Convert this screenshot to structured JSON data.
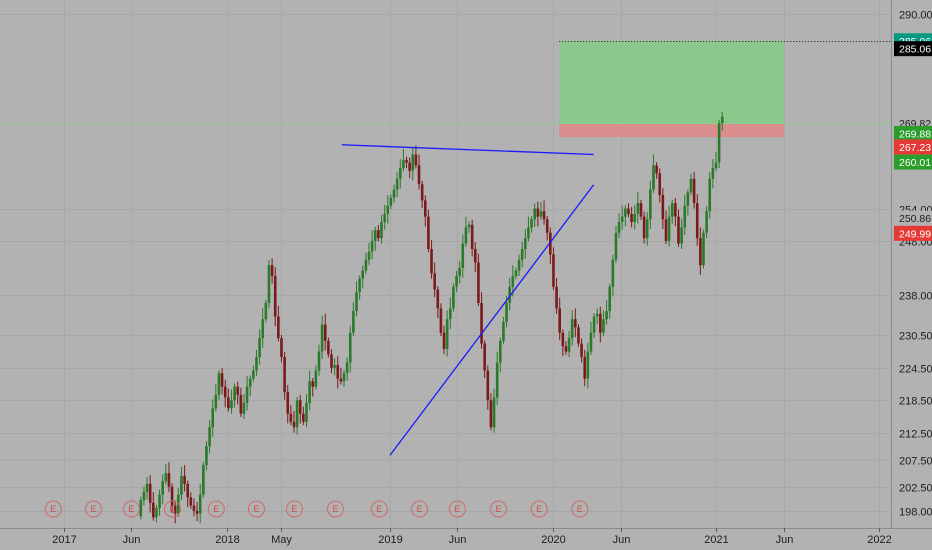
{
  "chart_data": {
    "type": "candlestick",
    "title": "",
    "ylim": [
      196.5,
      291.5
    ],
    "x_range": [
      "2016-07-01",
      "2022-05-01"
    ],
    "y_ticks": [
      {
        "label": "290.00",
        "value": 290.0
      },
      {
        "label": "254.00",
        "value": 254.0
      },
      {
        "label": "248.00",
        "value": 248.0
      },
      {
        "label": "238.00",
        "value": 238.0
      },
      {
        "label": "230.50",
        "value": 230.5
      },
      {
        "label": "224.50",
        "value": 224.5
      },
      {
        "label": "218.50",
        "value": 218.5
      },
      {
        "label": "212.50",
        "value": 212.5
      },
      {
        "label": "207.50",
        "value": 207.5
      },
      {
        "label": "202.50",
        "value": 202.5
      },
      {
        "label": "198.00",
        "value": 198.0
      }
    ],
    "x_ticks": [
      {
        "label": "2017",
        "date": "2017-01-01"
      },
      {
        "label": "Jun",
        "date": "2017-06-01"
      },
      {
        "label": "2018",
        "date": "2018-01-01"
      },
      {
        "label": "May",
        "date": "2018-05-01"
      },
      {
        "label": "2019",
        "date": "2019-01-01"
      },
      {
        "label": "Jun",
        "date": "2019-06-01"
      },
      {
        "label": "2020",
        "date": "2020-01-01"
      },
      {
        "label": "Jun",
        "date": "2020-06-01"
      },
      {
        "label": "2021",
        "date": "2021-01-01"
      },
      {
        "label": "Jun",
        "date": "2021-06-01"
      },
      {
        "label": "2022",
        "date": "2022-01-01"
      }
    ],
    "price_tags": [
      {
        "label": "285.06",
        "value": 285.06,
        "color": "#089981",
        "text_color": "#ffffff"
      },
      {
        "label": "285.06",
        "value": 283.6,
        "color": "#000000",
        "text_color": "#ffffff"
      },
      {
        "label": "269.82",
        "value": 269.82,
        "color": "#b2b2b2",
        "text_color": "#1e1e1e"
      },
      {
        "label": "269.88",
        "value": 267.9,
        "color": "#2a9d2a",
        "text_color": "#ffffff"
      },
      {
        "label": "267.23",
        "value": 265.4,
        "color": "#e53935",
        "text_color": "#ffffff"
      },
      {
        "label": "260.01",
        "value": 262.6,
        "color": "#2a9d2a",
        "text_color": "#ffffff"
      },
      {
        "label": "250.86",
        "value": 252.2,
        "color": "#b2b2b2",
        "text_color": "#1e1e1e"
      },
      {
        "label": "249.99",
        "value": 249.4,
        "color": "#e53935",
        "text_color": "#ffffff"
      }
    ],
    "earnings_marker_label": "E",
    "earnings_dates": [
      "2016-12-08",
      "2017-03-08",
      "2017-06-01",
      "2017-09-01",
      "2017-12-08",
      "2018-03-08",
      "2018-06-01",
      "2018-09-01",
      "2018-12-08",
      "2019-03-08",
      "2019-06-01",
      "2019-09-01",
      "2019-12-01",
      "2020-03-01"
    ],
    "trade_box": {
      "start": "2020-01-15",
      "end": "2021-06-01",
      "entry": 269.82,
      "target": 285.06,
      "stop": 267.23,
      "profit_color": "#7ecf7e",
      "loss_color": "#e08686"
    },
    "trendlines": [
      {
        "from": {
          "date": "2018-09-15",
          "value": 265.8
        },
        "to": {
          "date": "2020-04-01",
          "value": 264.0
        },
        "color": "#1a1aff"
      },
      {
        "from": {
          "date": "2019-01-01",
          "value": 208.3
        },
        "to": {
          "date": "2020-04-01",
          "value": 258.4
        },
        "color": "#1a1aff"
      }
    ],
    "horizontal_lines": [
      {
        "value": 269.82,
        "color": "#8fcf8f",
        "style": "solid"
      },
      {
        "value": 285.06,
        "color": "#1e1e1e",
        "style": "dotted"
      }
    ],
    "candles": {
      "interval": "weekly",
      "up_color": "#2a7a2a",
      "down_color": "#7a1a1a",
      "start": "2017-06-22",
      "open_first": 197.0,
      "closes": [
        200.0,
        201.5,
        203.0,
        199.5,
        196.8,
        198.5,
        201.0,
        203.5,
        205.0,
        202.5,
        199.0,
        197.5,
        201.0,
        204.5,
        203.0,
        200.5,
        199.0,
        198.0,
        197.5,
        201.0,
        206.5,
        210.0,
        213.5,
        217.0,
        219.5,
        223.5,
        221.0,
        219.0,
        217.0,
        218.5,
        221.0,
        219.5,
        216.0,
        218.0,
        221.0,
        222.5,
        224.0,
        226.5,
        230.0,
        233.5,
        236.5,
        243.5,
        241.5,
        234.0,
        230.0,
        226.5,
        220.0,
        216.0,
        214.5,
        213.5,
        218.5,
        216.0,
        214.5,
        218.0,
        222.0,
        221.0,
        224.0,
        227.5,
        232.5,
        229.5,
        227.0,
        224.5,
        225.0,
        222.5,
        222.0,
        223.5,
        225.5,
        231.0,
        235.0,
        238.5,
        241.0,
        242.5,
        244.5,
        246.0,
        248.0,
        250.0,
        248.5,
        251.5,
        253.0,
        254.5,
        256.0,
        257.5,
        259.5,
        261.5,
        263.0,
        262.5,
        261.0,
        264.0,
        262.0,
        258.5,
        255.5,
        252.5,
        246.5,
        242.0,
        239.0,
        235.5,
        231.0,
        228.0,
        233.5,
        235.5,
        239.5,
        241.5,
        243.0,
        247.5,
        250.5,
        251.0,
        246.5,
        244.0,
        236.5,
        229.0,
        224.0,
        218.5,
        213.5,
        219.0,
        225.5,
        229.5,
        233.0,
        236.5,
        239.5,
        241.5,
        242.5,
        244.5,
        246.5,
        248.5,
        250.5,
        252.0,
        254.0,
        252.5,
        253.5,
        252.0,
        249.5,
        245.5,
        239.5,
        235.5,
        231.0,
        228.5,
        227.5,
        230.0,
        233.5,
        232.0,
        229.0,
        226.5,
        222.5,
        227.5,
        231.0,
        234.0,
        234.5,
        231.0,
        233.5,
        235.0,
        239.5,
        244.5,
        249.5,
        251.5,
        252.5,
        254.0,
        253.0,
        251.5,
        253.0,
        255.0,
        252.5,
        248.5,
        252.0,
        257.5,
        262.0,
        260.5,
        256.5,
        252.0,
        248.0,
        252.5,
        255.0,
        252.5,
        247.5,
        250.5,
        254.5,
        257.0,
        259.5,
        255.0,
        248.5,
        243.5,
        249.5,
        253.5,
        259.5,
        261.5,
        262.5,
        269.8,
        271.0
      ]
    }
  }
}
